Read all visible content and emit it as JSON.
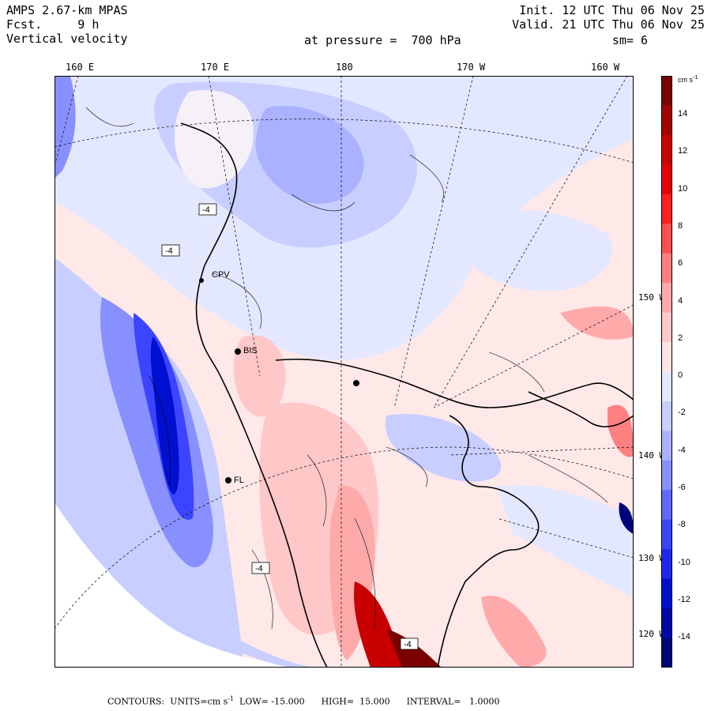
{
  "header": {
    "model": "AMPS 2.67-km MPAS",
    "fcst": "Fcst.     9 h",
    "field": "Vertical velocity",
    "init": "Init. 12 UTC Thu 06 Nov 25",
    "valid": "Valid. 21 UTC Thu 06 Nov 25",
    "pressure": "at pressure =  700 hPa",
    "smooth": "sm= 6"
  },
  "lon_labels": [
    "160 E",
    "170 E",
    "180",
    "170 W",
    "160 W"
  ],
  "lat_labels": [
    "150 W",
    "140 W",
    "130 W",
    "120 W"
  ],
  "stations": [
    "CPV",
    "BIS",
    "FL"
  ],
  "box_labels": [
    "-4",
    "-4",
    "-4",
    "-4"
  ],
  "colorbar": {
    "unit": "cm s",
    "unit_exp": "-1",
    "labels": [
      "14",
      "12",
      "10",
      "8",
      "6",
      "4",
      "2",
      "0",
      "-2",
      "-4",
      "-6",
      "-8",
      "-10",
      "-12",
      "-14"
    ],
    "colors": [
      "#7b0000",
      "#a50000",
      "#c80000",
      "#e60000",
      "#ff2020",
      "#ff5050",
      "#ff8080",
      "#ffaaaa",
      "#ffc8c8",
      "#ffe4e4",
      "#e4e8ff",
      "#c8ceff",
      "#aab2ff",
      "#8890ff",
      "#6068ff",
      "#3c44ff",
      "#2028f0",
      "#0010d0",
      "#0008a8",
      "#00057a"
    ],
    "color_neg": "#0008a8",
    "color_pos": "#c80000"
  },
  "footer": {
    "text": "CONTOURS:  UNITS=cm s",
    "exp": "-1",
    "rest": "  LOW= -15.000      HIGH=  15.000      INTERVAL=   1.0000"
  }
}
